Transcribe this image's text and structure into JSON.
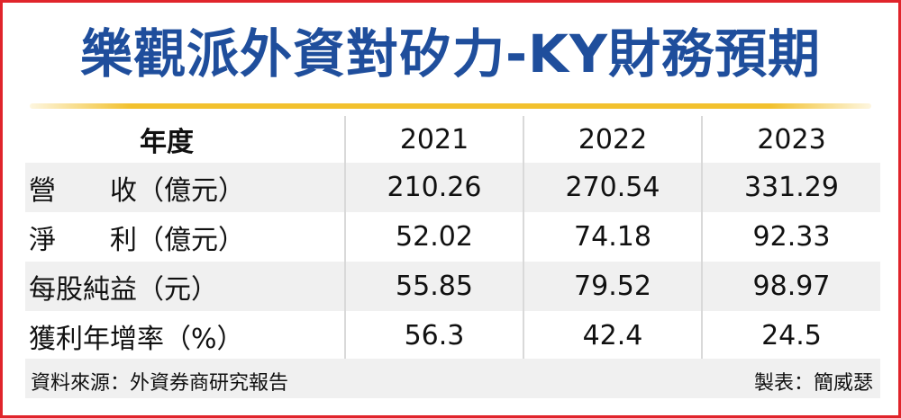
{
  "title": "樂觀派外資對矽力-KY財務預期",
  "table": {
    "header": {
      "label": "年度",
      "years": [
        "2021",
        "2022",
        "2023"
      ]
    },
    "rows": [
      {
        "label": "營　　收（億元）",
        "values": [
          "210.26",
          "270.54",
          "331.29"
        ]
      },
      {
        "label": "淨　　利（億元）",
        "values": [
          "52.02",
          "74.18",
          "92.33"
        ]
      },
      {
        "label": "每股純益（元）",
        "values": [
          "55.85",
          "79.52",
          "98.97"
        ]
      },
      {
        "label": "獲利年增率（%）",
        "values": [
          "56.3",
          "42.4",
          "24.5"
        ]
      }
    ]
  },
  "footer": {
    "source": "資料來源：外資券商研究報告",
    "maker": "製表：簡威瑟"
  },
  "colors": {
    "title": "#1f4e9c",
    "frame": "#e0242b",
    "rule": "#f2c12e",
    "shade": "#f0f0f0"
  }
}
